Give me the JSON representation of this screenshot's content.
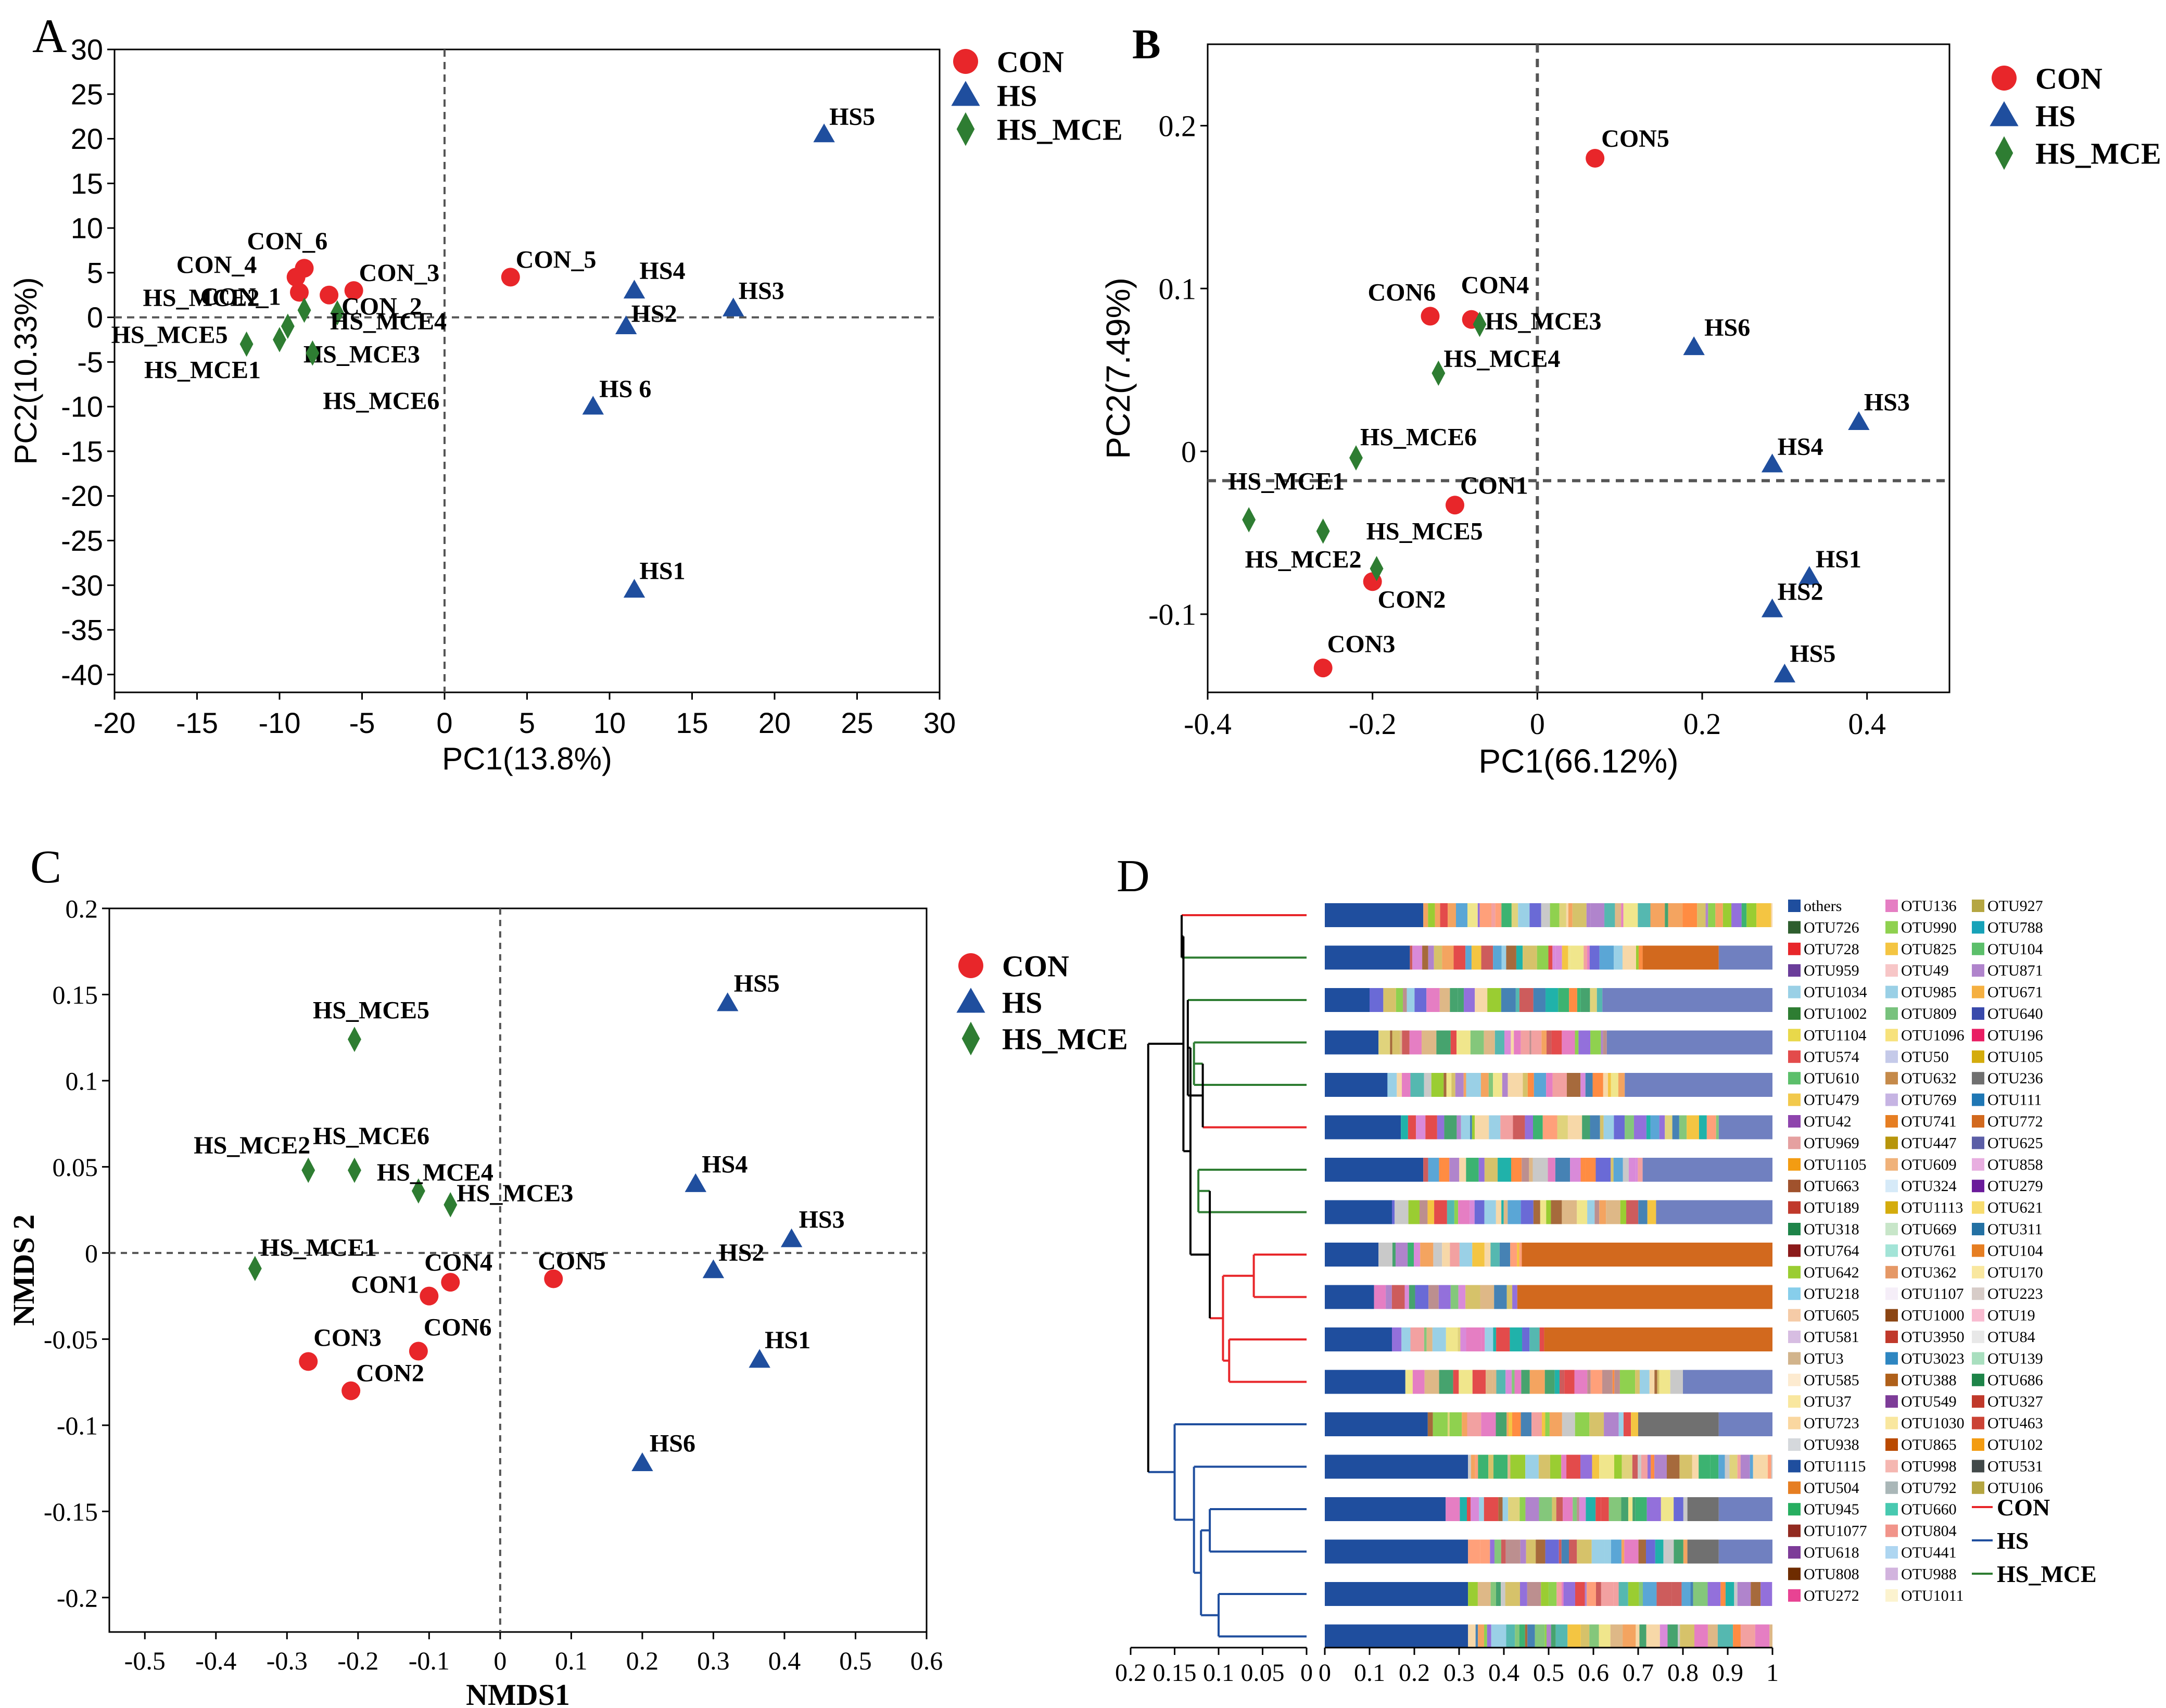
{
  "chart_data": [
    {
      "panel": "A",
      "type": "scatter",
      "xlabel": "PC1(13.8%)",
      "ylabel": "PC2(10.33%)",
      "xlim": [
        -20,
        30
      ],
      "ylim": [
        -42,
        30
      ],
      "xticks": [
        "-20",
        "-15",
        "-10",
        "-5",
        "0",
        "5",
        "10",
        "15",
        "20",
        "25",
        "30"
      ],
      "yticks": [
        "30",
        "25",
        "20",
        "15",
        "10",
        "5",
        "0",
        "-5",
        "-10",
        "-15",
        "-20",
        "-25",
        "-30",
        "-35",
        "-40"
      ],
      "legend": [
        "CON",
        "HS",
        "HS_MCE"
      ],
      "series": [
        {
          "name": "CON",
          "points": [
            {
              "label": "CON_6",
              "x": -8.5,
              "y": 5.5
            },
            {
              "label": "CON_4",
              "x": -9.0,
              "y": 4.5
            },
            {
              "label": "CON_3",
              "x": -5.5,
              "y": 3.0
            },
            {
              "label": "CON_1",
              "x": -8.8,
              "y": 2.8
            },
            {
              "label": "CON_2",
              "x": -7.0,
              "y": 2.5
            },
            {
              "label": "CON_5",
              "x": 4.0,
              "y": 4.5
            }
          ]
        },
        {
          "name": "HS",
          "points": [
            {
              "label": "HS5",
              "x": 23.0,
              "y": 20.5
            },
            {
              "label": "HS4",
              "x": 11.5,
              "y": 3.0
            },
            {
              "label": "HS2",
              "x": 11.0,
              "y": -1.0
            },
            {
              "label": "HS3",
              "x": 17.5,
              "y": 1.0
            },
            {
              "label": "HS 6",
              "x": 9.0,
              "y": -10.0
            },
            {
              "label": "HS1",
              "x": 11.5,
              "y": -30.5
            }
          ]
        },
        {
          "name": "HS_MCE",
          "points": [
            {
              "label": "HS_MCE2",
              "x": -8.5,
              "y": 0.8
            },
            {
              "label": "HS_MCE4",
              "x": -6.5,
              "y": 0.5
            },
            {
              "label": "HS_MCE5",
              "x": -12.0,
              "y": -3.0
            },
            {
              "label": "HS_MCE3",
              "x": -9.5,
              "y": -1.0
            },
            {
              "label": "HS_MCE1",
              "x": -10.0,
              "y": -2.5
            },
            {
              "label": "HS_MCE6",
              "x": -8.0,
              "y": -4.0
            }
          ]
        }
      ]
    },
    {
      "panel": "B",
      "type": "scatter",
      "xlabel": "PC1(66.12%)",
      "ylabel": "PC2(7.49%)",
      "xlim": [
        -0.4,
        0.5
      ],
      "ylim": [
        -0.148,
        0.25
      ],
      "xticks": [
        "-0.4",
        "-0.2",
        "0",
        "0.2",
        "0.4"
      ],
      "yticks": [
        "0.2",
        "0.1",
        "0",
        "-0.1"
      ],
      "legend": [
        "CON",
        "HS",
        "HS_MCE"
      ],
      "series": [
        {
          "name": "CON",
          "points": [
            {
              "label": "CON5",
              "x": 0.07,
              "y": 0.18
            },
            {
              "label": "CON6",
              "x": -0.13,
              "y": 0.083
            },
            {
              "label": "CON4",
              "x": -0.08,
              "y": 0.081
            },
            {
              "label": "CON1",
              "x": -0.1,
              "y": -0.033
            },
            {
              "label": "CON2",
              "x": -0.2,
              "y": -0.08
            },
            {
              "label": "CON3",
              "x": -0.26,
              "y": -0.133
            }
          ]
        },
        {
          "name": "HS",
          "points": [
            {
              "label": "HS6",
              "x": 0.19,
              "y": 0.064
            },
            {
              "label": "HS3",
              "x": 0.39,
              "y": 0.018
            },
            {
              "label": "HS4",
              "x": 0.285,
              "y": -0.008
            },
            {
              "label": "HS1",
              "x": 0.33,
              "y": -0.077
            },
            {
              "label": "HS2",
              "x": 0.285,
              "y": -0.097
            },
            {
              "label": "HS5",
              "x": 0.3,
              "y": -0.137
            }
          ]
        },
        {
          "name": "HS_MCE",
          "points": [
            {
              "label": "HS_MCE3",
              "x": -0.07,
              "y": 0.078
            },
            {
              "label": "HS_MCE4",
              "x": -0.12,
              "y": 0.048
            },
            {
              "label": "HS_MCE6",
              "x": -0.22,
              "y": -0.004
            },
            {
              "label": "HS_MCE1",
              "x": -0.35,
              "y": -0.042
            },
            {
              "label": "HS_MCE2",
              "x": -0.26,
              "y": -0.049
            },
            {
              "label": "HS_MCE5",
              "x": -0.195,
              "y": -0.072
            }
          ]
        }
      ]
    },
    {
      "panel": "C",
      "type": "scatter",
      "xlabel": "NMDS1",
      "ylabel": "NMDS 2",
      "xlim": [
        -0.55,
        0.6
      ],
      "ylim": [
        -0.22,
        0.2
      ],
      "xticks": [
        "-0.5",
        "-0.4",
        "-0.3",
        "-0.2",
        "-0.1",
        "0",
        "0.1",
        "0.2",
        "0.3",
        "0.4",
        "0.5",
        "0.6"
      ],
      "yticks": [
        "0.2",
        "0.15",
        "0.1",
        "0.05",
        "0",
        "-0.05",
        "-0.1",
        "-0.15",
        "-0.2"
      ],
      "legend": [
        "CON",
        "HS",
        "HS_MCE"
      ],
      "series": [
        {
          "name": "CON",
          "points": [
            {
              "label": "CON5",
              "x": 0.075,
              "y": -0.015
            },
            {
              "label": "CON4",
              "x": -0.07,
              "y": -0.017
            },
            {
              "label": "CON1",
              "x": -0.1,
              "y": -0.025
            },
            {
              "label": "CON6",
              "x": -0.115,
              "y": -0.057
            },
            {
              "label": "CON3",
              "x": -0.27,
              "y": -0.063
            },
            {
              "label": "CON2",
              "x": -0.21,
              "y": -0.08
            }
          ]
        },
        {
          "name": "HS",
          "points": [
            {
              "label": "HS5",
              "x": 0.32,
              "y": 0.145
            },
            {
              "label": "HS4",
              "x": 0.275,
              "y": 0.04
            },
            {
              "label": "HS3",
              "x": 0.41,
              "y": 0.008
            },
            {
              "label": "HS2",
              "x": 0.3,
              "y": -0.01
            },
            {
              "label": "HS1",
              "x": 0.365,
              "y": -0.062
            },
            {
              "label": "HS6",
              "x": 0.2,
              "y": -0.122
            }
          ]
        },
        {
          "name": "HS_MCE",
          "points": [
            {
              "label": "HS_MCE5",
              "x": -0.205,
              "y": 0.124
            },
            {
              "label": "HS_MCE6",
              "x": -0.205,
              "y": 0.048
            },
            {
              "label": "HS_MCE2",
              "x": -0.27,
              "y": 0.048
            },
            {
              "label": "HS_MCE4",
              "x": -0.115,
              "y": 0.036
            },
            {
              "label": "HS_MCE3",
              "x": -0.07,
              "y": 0.028
            },
            {
              "label": "HS_MCE1",
              "x": -0.345,
              "y": -0.009
            }
          ]
        }
      ]
    },
    {
      "panel": "D",
      "type": "bar",
      "orientation": "horizontal-stacked",
      "dendrogram_axis_ticks": [
        "0.2",
        "0.15",
        "0.1",
        "0.05",
        "0"
      ],
      "bar_axis_ticks": [
        "0",
        "0.1",
        "0.2",
        "0.3",
        "0.4",
        "0.5",
        "0.6",
        "0.7",
        "0.8",
        "0.9",
        "1"
      ],
      "rows": [
        {
          "group": "CON",
          "others": 0.22,
          "dominant": null,
          "dominant_share": 0
        },
        {
          "group": "HS_MCE",
          "others": 0.19,
          "dominant": "OTU772",
          "dominant_share": 0.17
        },
        {
          "group": "HS_MCE",
          "others": 0.1,
          "dominant": "OTU640",
          "dominant_share": 0.38
        },
        {
          "group": "HS_MCE",
          "others": 0.12,
          "dominant": "OTU640",
          "dominant_share": 0.37
        },
        {
          "group": "HS_MCE",
          "others": 0.14,
          "dominant": "OTU640",
          "dominant_share": 0.33
        },
        {
          "group": "CON",
          "others": 0.17,
          "dominant": "OTU640",
          "dominant_share": 0.12
        },
        {
          "group": "HS_MCE",
          "others": 0.22,
          "dominant": "OTU640",
          "dominant_share": 0.29
        },
        {
          "group": "HS_MCE",
          "others": 0.15,
          "dominant": "OTU640",
          "dominant_share": 0.26
        },
        {
          "group": "CON",
          "others": 0.12,
          "dominant": "OTU772",
          "dominant_share": 0.56
        },
        {
          "group": "CON",
          "others": 0.11,
          "dominant": "OTU772",
          "dominant_share": 0.57
        },
        {
          "group": "CON",
          "others": 0.15,
          "dominant": "OTU772",
          "dominant_share": 0.51
        },
        {
          "group": "CON",
          "others": 0.18,
          "dominant": "OTU640",
          "dominant_share": 0.2
        },
        {
          "group": "HS",
          "others": 0.23,
          "dominant": "OTU236",
          "dominant_share": 0.18
        },
        {
          "group": "HS",
          "others": 0.32,
          "dominant": null,
          "dominant_share": 0
        },
        {
          "group": "HS",
          "others": 0.27,
          "dominant": "OTU236",
          "dominant_share": 0.07
        },
        {
          "group": "HS",
          "others": 0.32,
          "dominant": "OTU236",
          "dominant_share": 0.07
        },
        {
          "group": "HS",
          "others": 0.32,
          "dominant": null,
          "dominant_share": 0
        },
        {
          "group": "HS",
          "others": 0.32,
          "dominant": null,
          "dominant_share": 0
        }
      ],
      "legend_otus": [
        "others",
        "OTU726",
        "OTU728",
        "OTU959",
        "OTU1034",
        "OTU1002",
        "OTU1104",
        "OTU574",
        "OTU610",
        "OTU479",
        "OTU42",
        "OTU969",
        "OTU1105",
        "OTU663",
        "OTU189",
        "OTU318",
        "OTU764",
        "OTU642",
        "OTU218",
        "OTU605",
        "OTU581",
        "OTU3",
        "OTU585",
        "OTU37",
        "OTU723",
        "OTU938",
        "OTU1115",
        "OTU504",
        "OTU945",
        "OTU1077",
        "OTU618",
        "OTU808",
        "OTU272",
        "OTU136",
        "OTU990",
        "OTU825",
        "OTU49",
        "OTU985",
        "OTU809",
        "OTU1096",
        "OTU50",
        "OTU632",
        "OTU769",
        "OTU741",
        "OTU447",
        "OTU609",
        "OTU324",
        "OTU1113",
        "OTU669",
        "OTU761",
        "OTU362",
        "OTU1107",
        "OTU1000",
        "OTU3950",
        "OTU3023",
        "OTU388",
        "OTU549",
        "OTU1030",
        "OTU865",
        "OTU998",
        "OTU792",
        "OTU660",
        "OTU804",
        "OTU441",
        "OTU988",
        "OTU1011",
        "OTU927",
        "OTU788",
        "OTU104",
        "OTU871",
        "OTU671",
        "OTU640",
        "OTU196",
        "OTU105",
        "OTU236",
        "OTU111",
        "OTU772",
        "OTU625",
        "OTU858",
        "OTU279",
        "OTU621",
        "OTU311",
        "OTU104",
        "OTU170",
        "OTU223",
        "OTU19",
        "OTU84",
        "OTU139",
        "OTU686",
        "OTU327",
        "OTU463",
        "OTU102",
        "OTU531",
        "OTU106"
      ],
      "tree_legend": [
        "CON",
        "HS",
        "HS_MCE"
      ]
    }
  ],
  "panel_letters": [
    "A",
    "B",
    "C",
    "D"
  ],
  "colors": {
    "CON": "#e8262a",
    "HS": "#1f4e9e",
    "HS_MCE": "#2e7d32",
    "others": "#1f4e9e",
    "OTU772": "#d2691e",
    "OTU640": "#7080c0",
    "OTU236": "#707070"
  }
}
